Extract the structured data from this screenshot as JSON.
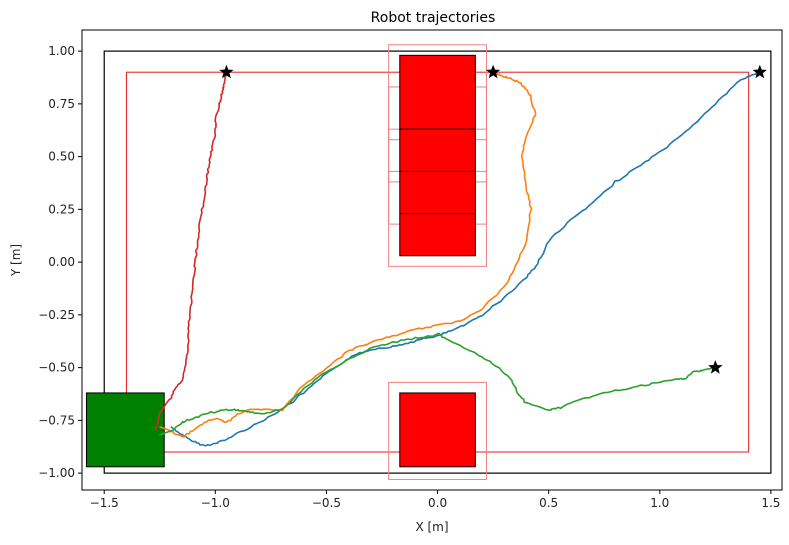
{
  "chart_data": {
    "type": "line",
    "title": "Robot trajectories",
    "xlabel": "X [m]",
    "ylabel": "Y [m]",
    "xlim": [
      -1.6,
      1.55
    ],
    "ylim": [
      -1.08,
      1.1
    ],
    "xticks": [
      -1.5,
      -1.0,
      -0.5,
      0.0,
      0.5,
      1.0,
      1.5
    ],
    "xtick_labels": [
      "−1.5",
      "−1.0",
      "−0.5",
      "0.0",
      "0.5",
      "1.0",
      "1.5"
    ],
    "yticks": [
      -1.0,
      -0.75,
      -0.5,
      -0.25,
      0.0,
      0.25,
      0.5,
      0.75,
      1.0
    ],
    "ytick_labels": [
      "−1.00",
      "−0.75",
      "−0.50",
      "−0.25",
      "0.00",
      "0.25",
      "0.50",
      "0.75",
      "1.00"
    ],
    "grid": false,
    "arena_outer": {
      "x": [
        -1.5,
        1.5
      ],
      "y": [
        -1.0,
        1.0
      ],
      "color": "#000000"
    },
    "arena_inner": {
      "x": [
        -1.4,
        1.4
      ],
      "y": [
        -0.9,
        0.9
      ],
      "color": "#e41a1c"
    },
    "start_zone": {
      "x": [
        -1.58,
        -1.23
      ],
      "y": [
        -0.97,
        -0.62
      ],
      "color": "#008000"
    },
    "obstacles": [
      {
        "x": [
          -0.17,
          0.17
        ],
        "y": [
          0.03,
          0.98
        ],
        "color": "#ff0000",
        "dividers": [
          0.23,
          0.43,
          0.63
        ]
      },
      {
        "x": [
          -0.17,
          0.17
        ],
        "y": [
          -0.97,
          -0.62
        ],
        "color": "#ff0000",
        "dividers": []
      }
    ],
    "obstacle_margins": [
      {
        "x": [
          -0.22,
          0.22
        ],
        "y": [
          -0.02,
          1.03
        ]
      },
      {
        "x": [
          -0.22,
          0.22
        ],
        "y": [
          0.18,
          0.43
        ]
      },
      {
        "x": [
          -0.22,
          0.22
        ],
        "y": [
          0.38,
          0.63
        ]
      },
      {
        "x": [
          -0.22,
          0.22
        ],
        "y": [
          0.58,
          0.83
        ]
      },
      {
        "x": [
          -0.22,
          0.22
        ],
        "y": [
          -1.03,
          -0.57
        ]
      }
    ],
    "goals": [
      {
        "x": -0.95,
        "y": 0.9
      },
      {
        "x": 0.25,
        "y": 0.9
      },
      {
        "x": 1.45,
        "y": 0.9
      },
      {
        "x": 1.25,
        "y": -0.5
      }
    ],
    "series": [
      {
        "color": "#1f77b4",
        "x": [
          -1.2,
          -1.15,
          -1.1,
          -1.05,
          -1.0,
          -0.95,
          -0.88,
          -0.8,
          -0.72,
          -0.65,
          -0.58,
          -0.5,
          -0.42,
          -0.35,
          -0.28,
          -0.2,
          -0.12,
          -0.05,
          0.0,
          0.05,
          0.12,
          0.2,
          0.3,
          0.4,
          0.45,
          0.5,
          0.6,
          0.7,
          0.8,
          0.9,
          1.0,
          1.1,
          1.2,
          1.3,
          1.36,
          1.4,
          1.45
        ],
        "y": [
          -0.78,
          -0.82,
          -0.85,
          -0.87,
          -0.86,
          -0.84,
          -0.8,
          -0.76,
          -0.71,
          -0.66,
          -0.6,
          -0.53,
          -0.47,
          -0.43,
          -0.41,
          -0.4,
          -0.38,
          -0.36,
          -0.35,
          -0.33,
          -0.3,
          -0.25,
          -0.17,
          -0.07,
          -0.01,
          0.1,
          0.2,
          0.28,
          0.38,
          0.45,
          0.52,
          0.6,
          0.7,
          0.8,
          0.86,
          0.88,
          0.9
        ]
      },
      {
        "color": "#ff7f0e",
        "x": [
          -1.25,
          -1.2,
          -1.15,
          -1.1,
          -1.05,
          -1.0,
          -0.95,
          -0.9,
          -0.85,
          -0.78,
          -0.7,
          -0.6,
          -0.5,
          -0.4,
          -0.3,
          -0.2,
          -0.1,
          0.0,
          0.1,
          0.2,
          0.3,
          0.35,
          0.4,
          0.42,
          0.4,
          0.38,
          0.4,
          0.44,
          0.42,
          0.4,
          0.37,
          0.33,
          0.3,
          0.27,
          0.25
        ],
        "y": [
          -0.78,
          -0.8,
          -0.83,
          -0.8,
          -0.76,
          -0.74,
          -0.76,
          -0.72,
          -0.7,
          -0.7,
          -0.7,
          -0.58,
          -0.5,
          -0.42,
          -0.38,
          -0.35,
          -0.32,
          -0.3,
          -0.28,
          -0.22,
          -0.12,
          -0.02,
          0.1,
          0.25,
          0.35,
          0.5,
          0.6,
          0.7,
          0.78,
          0.82,
          0.85,
          0.87,
          0.88,
          0.89,
          0.9
        ]
      },
      {
        "color": "#2ca02c",
        "x": [
          -1.25,
          -1.2,
          -1.15,
          -1.1,
          -1.05,
          -1.0,
          -0.95,
          -0.9,
          -0.85,
          -0.8,
          -0.7,
          -0.6,
          -0.5,
          -0.4,
          -0.3,
          -0.2,
          -0.1,
          -0.02,
          0.0,
          0.05,
          0.15,
          0.25,
          0.33,
          0.36,
          0.4,
          0.5,
          0.55,
          0.65,
          0.75,
          0.85,
          0.95,
          1.05,
          1.12,
          1.15,
          1.2,
          1.25
        ],
        "y": [
          -0.82,
          -0.8,
          -0.76,
          -0.74,
          -0.72,
          -0.71,
          -0.7,
          -0.7,
          -0.71,
          -0.72,
          -0.7,
          -0.6,
          -0.52,
          -0.46,
          -0.41,
          -0.38,
          -0.36,
          -0.35,
          -0.34,
          -0.37,
          -0.42,
          -0.48,
          -0.55,
          -0.62,
          -0.67,
          -0.7,
          -0.69,
          -0.65,
          -0.62,
          -0.6,
          -0.58,
          -0.56,
          -0.55,
          -0.52,
          -0.51,
          -0.5
        ]
      },
      {
        "color": "#d62728",
        "x": [
          -1.27,
          -1.25,
          -1.2,
          -1.18,
          -1.15,
          -1.13,
          -1.12,
          -1.12,
          -1.11,
          -1.1,
          -1.09,
          -1.08,
          -1.07,
          -1.05,
          -1.04,
          -1.03,
          -1.02,
          -1.0,
          -1.0,
          -0.98,
          -0.97,
          -0.96,
          -0.95
        ],
        "y": [
          -0.8,
          -0.72,
          -0.64,
          -0.6,
          -0.56,
          -0.47,
          -0.38,
          -0.3,
          -0.2,
          -0.1,
          0.0,
          0.1,
          0.2,
          0.3,
          0.38,
          0.45,
          0.52,
          0.6,
          0.68,
          0.75,
          0.8,
          0.85,
          0.9
        ]
      }
    ]
  }
}
